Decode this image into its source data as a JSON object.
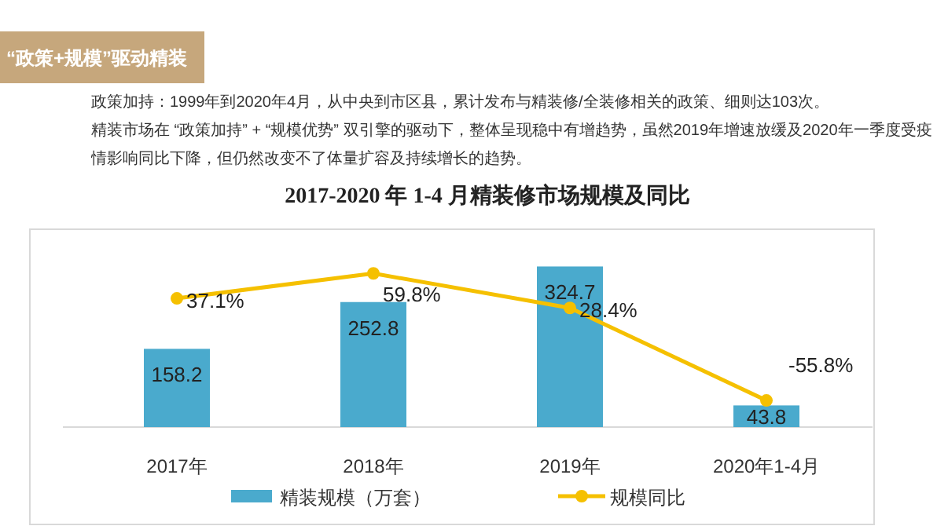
{
  "chart_data": {
    "type": "bar",
    "title": "2017-2020 年 1-4 月精装修市场规模及同比",
    "annotations": [
      "“政策+规模”驱动精装",
      "政策加持：1999年到2020年4月，从中央到市区县，累计发布与精装修/全装修相关的政策、细则达103次。",
      "精装市场在 “政策加持” + “规模优势” 双引擎的驱动下，整体呈现稳中有增趋势，虽然2019年增速放缓及2020年一季度受疫情影响同比下降，但仍然改变不了体量扩容及持续增长的趋势。"
    ],
    "categories": [
      "2017年",
      "2018年",
      "2019年",
      "2020年1-4月"
    ],
    "series": [
      {
        "name": "精装规模（万套）",
        "color": "#4aaacd",
        "values": [
          158.2,
          252.8,
          324.7,
          43.8
        ],
        "value_labels": [
          "158.2",
          "252.8",
          "324.7",
          "43.8"
        ]
      },
      {
        "name": "规模同比",
        "type": "line",
        "axis": "y2",
        "color": "#f5c000",
        "values": [
          37.1,
          59.8,
          28.4,
          -55.8
        ],
        "value_labels": [
          "37.1%",
          "59.8%",
          "28.4%",
          "-55.8%"
        ]
      }
    ],
    "ylim": [
      0,
      400
    ],
    "y2lim": [
      -80,
      100
    ],
    "tick_labels": "x",
    "legend": "bottom",
    "marker": "circle"
  }
}
